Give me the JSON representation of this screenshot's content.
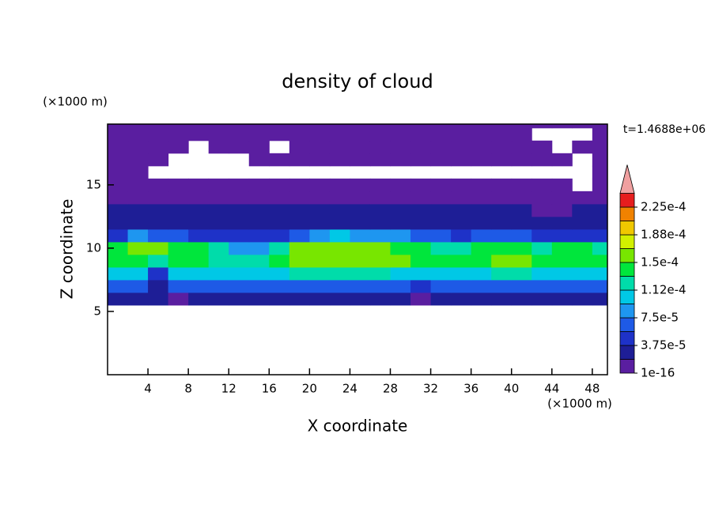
{
  "chart_data": {
    "type": "contour",
    "title": "density of cloud",
    "xlabel": "X coordinate",
    "ylabel": "Z coordinate",
    "x_unit": "(×1000 m)",
    "y_unit": "(×1000 m)",
    "time_label": "t=1.4688e+06",
    "xlim": [
      0,
      49.5
    ],
    "ylim": [
      0,
      19.8
    ],
    "xticks": [
      4,
      8,
      12,
      16,
      20,
      24,
      28,
      32,
      36,
      40,
      44,
      48
    ],
    "yticks": [
      5,
      10,
      15
    ],
    "x": [
      1,
      3,
      5,
      7,
      9,
      11,
      13,
      15,
      17,
      19,
      21,
      23,
      25,
      27,
      29,
      31,
      33,
      35,
      37,
      39,
      41,
      43,
      45,
      47,
      49
    ],
    "y": [
      6,
      7,
      8,
      9,
      10,
      11,
      12,
      13,
      14,
      15,
      16,
      17,
      18,
      19,
      20
    ],
    "z": [
      [
        2.5e-05,
        2.5e-05,
        2.5e-05,
        1.5e-05,
        2.5e-05,
        2.5e-05,
        2.5e-05,
        2.5e-05,
        2.5e-05,
        2.5e-05,
        2.5e-05,
        2.5e-05,
        2.5e-05,
        2.5e-05,
        2.5e-05,
        1.5e-05,
        2.5e-05,
        2.5e-05,
        2.5e-05,
        2.5e-05,
        2.5e-05,
        2.5e-05,
        2.5e-05,
        2.5e-05,
        2.5e-05
      ],
      [
        6e-05,
        6e-05,
        3e-05,
        6e-05,
        6e-05,
        6e-05,
        6e-05,
        6e-05,
        6e-05,
        6e-05,
        6e-05,
        6e-05,
        6e-05,
        6e-05,
        6e-05,
        5e-05,
        6e-05,
        6e-05,
        6e-05,
        6e-05,
        6e-05,
        6e-05,
        6e-05,
        6e-05,
        6e-05
      ],
      [
        0.00011,
        0.000105,
        4e-05,
        0.0001,
        0.00011,
        0.00011,
        0.00011,
        0.00011,
        0.00011,
        0.000115,
        0.000115,
        0.000115,
        0.000115,
        0.000115,
        0.00011,
        0.0001,
        0.00011,
        0.00011,
        0.00011,
        0.000115,
        0.000115,
        0.00011,
        0.00011,
        0.00011,
        0.00011
      ],
      [
        0.000135,
        0.000135,
        0.00012,
        0.000135,
        0.000135,
        0.00013,
        0.00013,
        0.000125,
        0.00014,
        0.000155,
        0.00016,
        0.00016,
        0.00016,
        0.000155,
        0.00015,
        0.000135,
        0.000135,
        0.00014,
        0.000145,
        0.00015,
        0.00015,
        0.000145,
        0.000145,
        0.00014,
        0.000135
      ],
      [
        0.000145,
        0.00015,
        0.00015,
        0.000145,
        0.00014,
        0.00012,
        9e-05,
        9e-05,
        0.00012,
        0.000155,
        0.00016,
        0.000165,
        0.00016,
        0.000155,
        0.000145,
        0.00014,
        0.00013,
        0.00013,
        0.00014,
        0.000145,
        0.00014,
        0.00013,
        0.00014,
        0.00014,
        0.00013
      ],
      [
        5e-05,
        8e-05,
        6e-05,
        6e-05,
        5e-05,
        4e-05,
        4e-05,
        4e-05,
        5e-05,
        6e-05,
        9e-05,
        0.0001,
        9e-05,
        8e-05,
        8e-05,
        7e-05,
        6e-05,
        5e-05,
        6e-05,
        7e-05,
        6e-05,
        5e-05,
        5e-05,
        4e-05,
        4e-05
      ],
      [
        3e-05,
        3.5e-05,
        3e-05,
        3e-05,
        3e-05,
        3e-05,
        3e-05,
        3e-05,
        3e-05,
        2.5e-05,
        3e-05,
        3e-05,
        3e-05,
        3e-05,
        3e-05,
        3e-05,
        2.5e-05,
        2.5e-05,
        3e-05,
        3e-05,
        3e-05,
        2.5e-05,
        2.5e-05,
        3e-05,
        3e-05
      ],
      [
        2e-05,
        2e-05,
        2e-05,
        2e-05,
        2e-05,
        2e-05,
        2e-05,
        2e-05,
        2e-05,
        2e-05,
        2e-05,
        2e-05,
        2e-05,
        2e-05,
        2e-05,
        2e-05,
        2e-05,
        2e-05,
        2e-05,
        2e-05,
        2e-05,
        1e-05,
        1e-05,
        2e-05,
        2e-05
      ],
      [
        1.2e-05,
        1.2e-05,
        1.2e-05,
        1.2e-05,
        1.2e-05,
        1.2e-05,
        1.2e-05,
        1.2e-05,
        1.2e-05,
        1.2e-05,
        1.2e-05,
        1.2e-05,
        1.2e-05,
        1.2e-05,
        1.2e-05,
        1.2e-05,
        1.2e-05,
        1.2e-05,
        1.2e-05,
        1.2e-05,
        1.2e-05,
        6e-06,
        1.2e-05,
        1.2e-05,
        1.2e-05
      ],
      [
        6e-06,
        6e-06,
        6e-06,
        6e-06,
        6e-06,
        6e-06,
        6e-06,
        6e-06,
        6e-06,
        6e-06,
        6e-06,
        6e-06,
        6e-06,
        6e-06,
        6e-06,
        6e-06,
        6e-06,
        6e-06,
        6e-06,
        6e-06,
        6e-06,
        6e-06,
        6e-06,
        null,
        6e-06
      ],
      [
        6e-06,
        6e-06,
        null,
        null,
        null,
        null,
        null,
        null,
        null,
        null,
        null,
        null,
        null,
        null,
        null,
        null,
        null,
        null,
        null,
        null,
        null,
        null,
        null,
        null,
        6e-06
      ],
      [
        4e-06,
        4e-06,
        4e-06,
        null,
        null,
        null,
        null,
        4e-06,
        4e-06,
        4e-06,
        4e-06,
        4e-06,
        4e-06,
        4e-06,
        4e-06,
        4e-06,
        4e-06,
        4e-06,
        4e-06,
        4e-06,
        4e-06,
        4e-06,
        4e-06,
        null,
        4e-06
      ],
      [
        4e-06,
        4e-06,
        4e-06,
        4e-06,
        null,
        4e-06,
        4e-06,
        4e-06,
        null,
        4e-06,
        4e-06,
        4e-06,
        4e-06,
        4e-06,
        4e-06,
        4e-06,
        4e-06,
        4e-06,
        4e-06,
        4e-06,
        4e-06,
        4e-06,
        null,
        4e-06,
        4e-06
      ],
      [
        4e-06,
        4e-06,
        4e-06,
        4e-06,
        4e-06,
        4e-06,
        4e-06,
        4e-06,
        4e-06,
        4e-06,
        4e-06,
        4e-06,
        4e-06,
        4e-06,
        4e-06,
        4e-06,
        4e-06,
        4e-06,
        4e-06,
        4e-06,
        4e-06,
        null,
        null,
        null,
        4e-06
      ],
      [
        4e-06,
        4e-06,
        4e-06,
        4e-06,
        4e-06,
        4e-06,
        4e-06,
        4e-06,
        4e-06,
        4e-06,
        4e-06,
        4e-06,
        4e-06,
        4e-06,
        4e-06,
        4e-06,
        4e-06,
        4e-06,
        4e-06,
        4e-06,
        4e-06,
        4e-06,
        4e-06,
        4e-06,
        4e-06
      ]
    ],
    "levels": [
      1e-16,
      1.875e-05,
      3.75e-05,
      5.625e-05,
      7.5e-05,
      9.375e-05,
      0.0001125,
      0.00013125,
      0.00015,
      0.00016875,
      0.0001875,
      0.00020625,
      0.000225,
      0.00024375
    ],
    "colors": [
      "#5a1ea0",
      "#1e1e96",
      "#1e32c8",
      "#1e5ae6",
      "#1e96f0",
      "#00c8e6",
      "#00dcaa",
      "#00e63c",
      "#78e600",
      "#d2f000",
      "#f0c800",
      "#f08200",
      "#e61e1e"
    ],
    "over_color": "#f0a0a0",
    "colorbar_ticks": [
      {
        "value": 1e-16,
        "label": "1e-16"
      },
      {
        "value": 3.75e-05,
        "label": "3.75e-5"
      },
      {
        "value": 7.5e-05,
        "label": "7.5e-5"
      },
      {
        "value": 0.0001125,
        "label": "1.12e-4"
      },
      {
        "value": 0.00015,
        "label": "1.5e-4"
      },
      {
        "value": 0.0001875,
        "label": "1.88e-4"
      },
      {
        "value": 0.000225,
        "label": "2.25e-4"
      }
    ]
  }
}
